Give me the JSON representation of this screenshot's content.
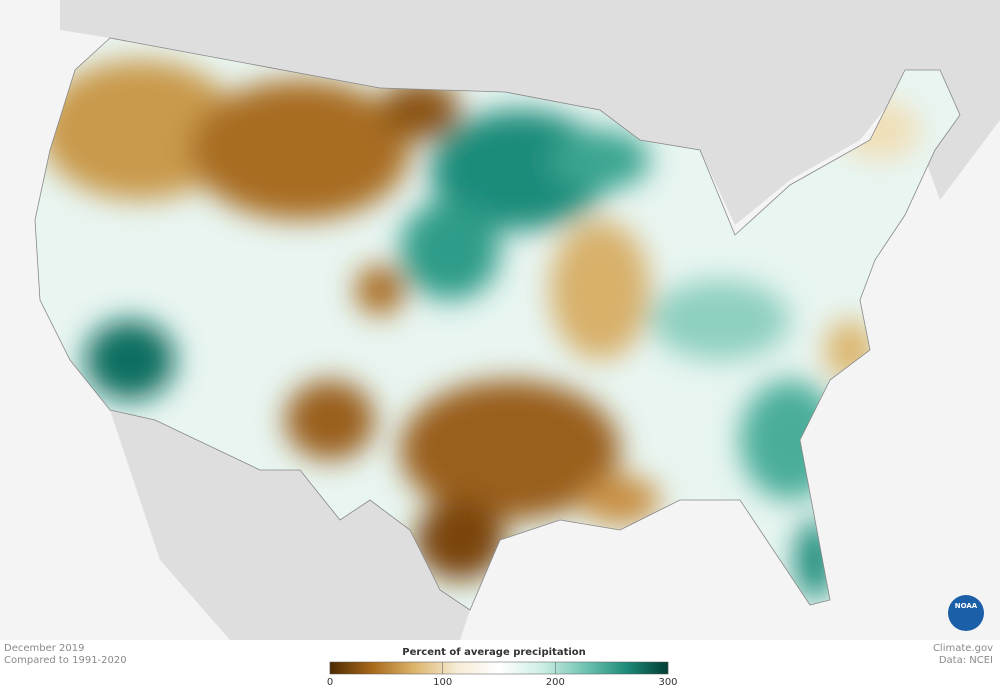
{
  "footer": {
    "period": "December 2019",
    "baseline": "Compared to 1991-2020",
    "site": "Climate.gov",
    "source": "Data: NCEI",
    "logo": "NOAA"
  },
  "legend": {
    "title": "Percent of average precipitation",
    "lim": [
      0,
      300
    ],
    "ticks": [
      0,
      100,
      200,
      300
    ],
    "colors": [
      "#4d2a04",
      "#a8691a",
      "#dcb56c",
      "#f6ecd6",
      "#ffffff",
      "#cfeee6",
      "#73c5b3",
      "#1f8c7a",
      "#003d33"
    ]
  }
}
